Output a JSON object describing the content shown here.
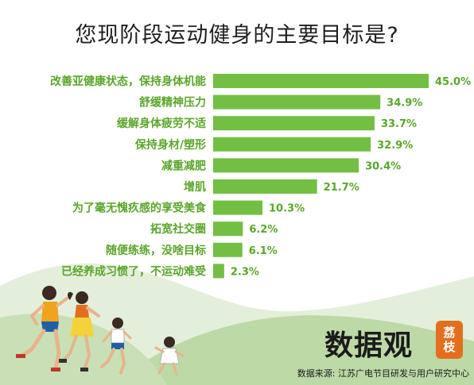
{
  "title": "您现阶段运动健身的主要目标是?",
  "chart_data": {
    "type": "bar",
    "orientation": "horizontal",
    "categories": [
      "改善亚健康状态，保持身体机能",
      "舒缓精神压力",
      "缓解身体疲劳不适",
      "保持身材/塑形",
      "减重减肥",
      "增肌",
      "为了毫无愧疚感的享受美食",
      "拓宽社交圈",
      "随便练练，没啥目标",
      "已经养成习惯了，不运动难受"
    ],
    "values": [
      45.0,
      34.9,
      33.7,
      32.9,
      30.4,
      21.7,
      10.3,
      6.2,
      6.1,
      2.3
    ],
    "value_labels": [
      "45.0%",
      "34.9%",
      "33.7%",
      "32.9%",
      "30.4%",
      "21.7%",
      "10.3%",
      "6.2%",
      "6.1%",
      "2.3%"
    ],
    "unit": "%",
    "xlim": [
      0,
      45
    ],
    "grid": false,
    "bar_color": "#72bf44",
    "label_color": "#5aa62a"
  },
  "logo": {
    "text": "数据观",
    "seal_line1": "荔",
    "seal_line2": "枝"
  },
  "source": "数据来源: 江苏广电节目研发与用户研究中心",
  "colors": {
    "hill_light": "#dcecd3",
    "hill_dark": "#b9d8a2",
    "accent": "#e36f1e"
  },
  "illustration": "family-running-icon"
}
